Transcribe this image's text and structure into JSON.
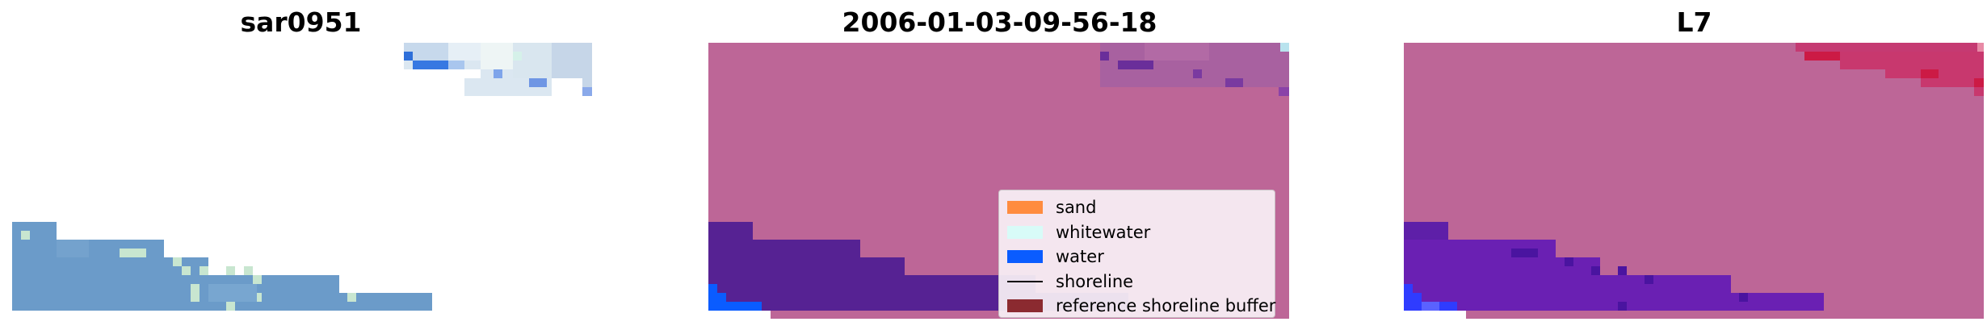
{
  "figure": {
    "panels": [
      {
        "title": "sar0951"
      },
      {
        "title": "2006-01-03-09-56-18"
      },
      {
        "title": "L7"
      }
    ],
    "legend": {
      "items": [
        {
          "label": "sand",
          "color": "#ff8c3f",
          "kind": "patch"
        },
        {
          "label": "whitewater",
          "color": "#d8fbf8",
          "kind": "patch"
        },
        {
          "label": "water",
          "color": "#0a5cff",
          "kind": "patch"
        },
        {
          "label": "shoreline",
          "color": "#000000",
          "kind": "line"
        },
        {
          "label": "reference shoreline buffer",
          "color": "#8b2a30",
          "kind": "patch"
        }
      ]
    },
    "colors": {
      "pink_background": "#bd6697",
      "purple_water": "#562293",
      "blue_water": "#0a5cff",
      "steel_blue": "#6b9bc9",
      "red_patch": "#cc1a45"
    }
  }
}
